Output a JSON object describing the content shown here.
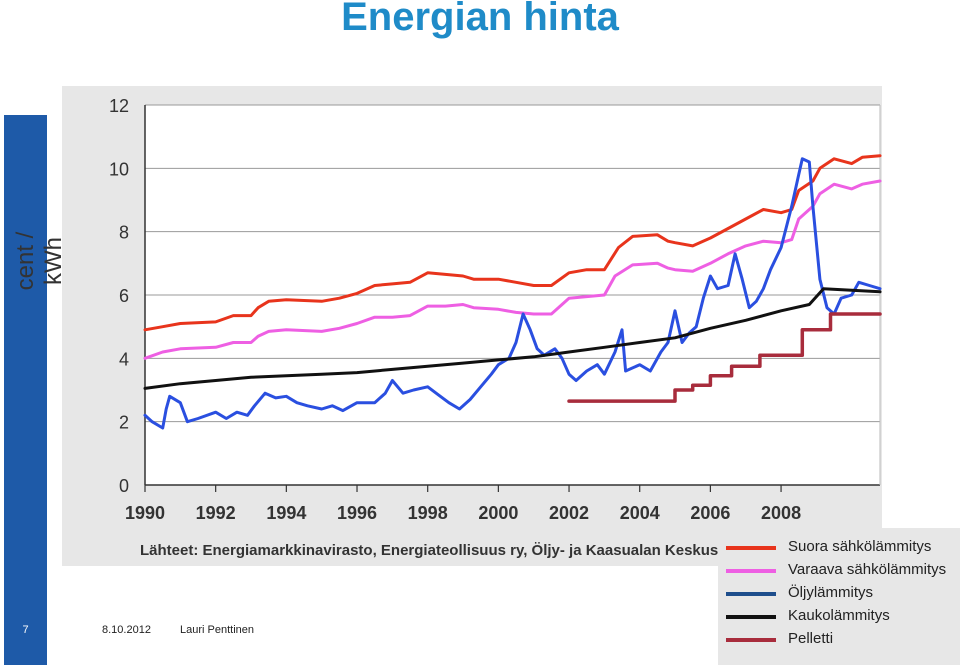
{
  "slide": {
    "title": "Energian hinta",
    "slide_number": "7",
    "date": "8.10.2012",
    "author": "Lauri Penttinen"
  },
  "chart_data": {
    "type": "line",
    "ylabel": "cent / kWh",
    "ylim": [
      0,
      12
    ],
    "yticks": [
      0,
      2,
      4,
      6,
      8,
      10,
      12
    ],
    "xlim": [
      1990,
      2010.8
    ],
    "xticks": [
      1990,
      1992,
      1994,
      1996,
      1998,
      2000,
      2002,
      2004,
      2006,
      2008
    ],
    "source": "Lähteet: Energiamarkkinavirasto, Energiateollisuus ry, Öljy- ja Kaasualan Keskusliitto",
    "legend_position": "bottom-right",
    "series": [
      {
        "name": "Suora sähkölämmitys",
        "color": "#e8341c",
        "points": [
          [
            1990,
            4.9
          ],
          [
            1990.5,
            5.0
          ],
          [
            1991,
            5.1
          ],
          [
            1992,
            5.15
          ],
          [
            1992.5,
            5.35
          ],
          [
            1993,
            5.35
          ],
          [
            1993.2,
            5.6
          ],
          [
            1993.5,
            5.8
          ],
          [
            1994,
            5.85
          ],
          [
            1995,
            5.8
          ],
          [
            1995.5,
            5.9
          ],
          [
            1996,
            6.05
          ],
          [
            1996.5,
            6.3
          ],
          [
            1997,
            6.35
          ],
          [
            1997.5,
            6.4
          ],
          [
            1998,
            6.7
          ],
          [
            1998.5,
            6.65
          ],
          [
            1999,
            6.6
          ],
          [
            1999.3,
            6.5
          ],
          [
            2000,
            6.5
          ],
          [
            2000.5,
            6.4
          ],
          [
            2001,
            6.3
          ],
          [
            2001.5,
            6.3
          ],
          [
            2002,
            6.7
          ],
          [
            2002.5,
            6.8
          ],
          [
            2003,
            6.8
          ],
          [
            2003.4,
            7.5
          ],
          [
            2003.8,
            7.85
          ],
          [
            2004.5,
            7.9
          ],
          [
            2004.8,
            7.7
          ],
          [
            2005,
            7.65
          ],
          [
            2005.5,
            7.55
          ],
          [
            2006,
            7.8
          ],
          [
            2006.5,
            8.1
          ],
          [
            2007,
            8.4
          ],
          [
            2007.5,
            8.7
          ],
          [
            2008,
            8.6
          ],
          [
            2008.3,
            8.7
          ],
          [
            2008.5,
            9.3
          ],
          [
            2008.9,
            9.6
          ],
          [
            2009.1,
            10.0
          ],
          [
            2009.5,
            10.3
          ],
          [
            2010,
            10.15
          ],
          [
            2010.3,
            10.35
          ],
          [
            2010.8,
            10.4
          ]
        ]
      },
      {
        "name": "Varaava sähkölämmitys",
        "color": "#ee5fe3",
        "points": [
          [
            1990,
            4.0
          ],
          [
            1990.5,
            4.2
          ],
          [
            1991,
            4.3
          ],
          [
            1992,
            4.35
          ],
          [
            1992.5,
            4.5
          ],
          [
            1993,
            4.5
          ],
          [
            1993.2,
            4.7
          ],
          [
            1993.5,
            4.85
          ],
          [
            1994,
            4.9
          ],
          [
            1995,
            4.85
          ],
          [
            1995.5,
            4.95
          ],
          [
            1996,
            5.1
          ],
          [
            1996.5,
            5.3
          ],
          [
            1997,
            5.3
          ],
          [
            1997.5,
            5.35
          ],
          [
            1998,
            5.65
          ],
          [
            1998.5,
            5.65
          ],
          [
            1999,
            5.7
          ],
          [
            1999.3,
            5.6
          ],
          [
            2000,
            5.55
          ],
          [
            2000.5,
            5.45
          ],
          [
            2001,
            5.4
          ],
          [
            2001.5,
            5.4
          ],
          [
            2002,
            5.9
          ],
          [
            2002.5,
            5.95
          ],
          [
            2003,
            6.0
          ],
          [
            2003.3,
            6.6
          ],
          [
            2003.8,
            6.95
          ],
          [
            2004.5,
            7.0
          ],
          [
            2004.8,
            6.85
          ],
          [
            2005,
            6.8
          ],
          [
            2005.5,
            6.75
          ],
          [
            2006,
            7.0
          ],
          [
            2006.5,
            7.3
          ],
          [
            2007,
            7.55
          ],
          [
            2007.5,
            7.7
          ],
          [
            2008,
            7.65
          ],
          [
            2008.3,
            7.75
          ],
          [
            2008.5,
            8.4
          ],
          [
            2008.9,
            8.8
          ],
          [
            2009.1,
            9.2
          ],
          [
            2009.5,
            9.5
          ],
          [
            2010,
            9.35
          ],
          [
            2010.3,
            9.5
          ],
          [
            2010.8,
            9.6
          ]
        ]
      },
      {
        "name": "Öljylämmitys",
        "color": "#2a4fe0",
        "points": [
          [
            1990,
            2.2
          ],
          [
            1990.2,
            2.0
          ],
          [
            1990.5,
            1.8
          ],
          [
            1990.6,
            2.4
          ],
          [
            1990.7,
            2.8
          ],
          [
            1991,
            2.6
          ],
          [
            1991.2,
            2.0
          ],
          [
            1991.5,
            2.1
          ],
          [
            1992,
            2.3
          ],
          [
            1992.3,
            2.1
          ],
          [
            1992.6,
            2.3
          ],
          [
            1992.9,
            2.2
          ],
          [
            1993.1,
            2.5
          ],
          [
            1993.4,
            2.9
          ],
          [
            1993.7,
            2.75
          ],
          [
            1994,
            2.8
          ],
          [
            1994.3,
            2.6
          ],
          [
            1994.6,
            2.5
          ],
          [
            1995,
            2.4
          ],
          [
            1995.3,
            2.5
          ],
          [
            1995.6,
            2.35
          ],
          [
            1996,
            2.6
          ],
          [
            1996.5,
            2.6
          ],
          [
            1996.8,
            2.9
          ],
          [
            1997,
            3.3
          ],
          [
            1997.3,
            2.9
          ],
          [
            1997.6,
            3.0
          ],
          [
            1998,
            3.1
          ],
          [
            1998.3,
            2.85
          ],
          [
            1998.6,
            2.6
          ],
          [
            1998.9,
            2.4
          ],
          [
            1999.2,
            2.7
          ],
          [
            1999.5,
            3.1
          ],
          [
            1999.8,
            3.5
          ],
          [
            2000,
            3.8
          ],
          [
            2000.3,
            4.0
          ],
          [
            2000.5,
            4.5
          ],
          [
            2000.7,
            5.4
          ],
          [
            2000.9,
            4.9
          ],
          [
            2001.1,
            4.3
          ],
          [
            2001.3,
            4.1
          ],
          [
            2001.6,
            4.3
          ],
          [
            2001.8,
            4.0
          ],
          [
            2002,
            3.5
          ],
          [
            2002.2,
            3.3
          ],
          [
            2002.5,
            3.6
          ],
          [
            2002.8,
            3.8
          ],
          [
            2003,
            3.5
          ],
          [
            2003.3,
            4.2
          ],
          [
            2003.5,
            4.9
          ],
          [
            2003.6,
            3.6
          ],
          [
            2004,
            3.8
          ],
          [
            2004.3,
            3.6
          ],
          [
            2004.6,
            4.2
          ],
          [
            2004.8,
            4.5
          ],
          [
            2005,
            5.5
          ],
          [
            2005.2,
            4.5
          ],
          [
            2005.4,
            4.8
          ],
          [
            2005.6,
            5.0
          ],
          [
            2005.8,
            5.9
          ],
          [
            2006,
            6.6
          ],
          [
            2006.2,
            6.2
          ],
          [
            2006.5,
            6.3
          ],
          [
            2006.7,
            7.3
          ],
          [
            2006.9,
            6.5
          ],
          [
            2007.1,
            5.6
          ],
          [
            2007.3,
            5.8
          ],
          [
            2007.5,
            6.2
          ],
          [
            2007.7,
            6.8
          ],
          [
            2008,
            7.5
          ],
          [
            2008.3,
            8.8
          ],
          [
            2008.5,
            9.8
          ],
          [
            2008.6,
            10.3
          ],
          [
            2008.8,
            10.2
          ],
          [
            2008.9,
            8.8
          ],
          [
            2009.1,
            6.5
          ],
          [
            2009.3,
            5.6
          ],
          [
            2009.5,
            5.4
          ],
          [
            2009.7,
            5.9
          ],
          [
            2010,
            6.0
          ],
          [
            2010.2,
            6.4
          ],
          [
            2010.5,
            6.3
          ],
          [
            2010.8,
            6.2
          ]
        ]
      },
      {
        "name": "Kaukolämmitys",
        "color": "#111111",
        "points": [
          [
            1990,
            3.05
          ],
          [
            1991,
            3.2
          ],
          [
            1992,
            3.3
          ],
          [
            1993,
            3.4
          ],
          [
            1994,
            3.45
          ],
          [
            1995,
            3.5
          ],
          [
            1996,
            3.55
          ],
          [
            1997,
            3.65
          ],
          [
            1998,
            3.75
          ],
          [
            1999,
            3.85
          ],
          [
            2000,
            3.95
          ],
          [
            2001,
            4.05
          ],
          [
            2002,
            4.2
          ],
          [
            2003,
            4.35
          ],
          [
            2004,
            4.5
          ],
          [
            2005,
            4.65
          ],
          [
            2006,
            4.95
          ],
          [
            2007,
            5.2
          ],
          [
            2008,
            5.5
          ],
          [
            2008.8,
            5.7
          ],
          [
            2009.2,
            6.2
          ],
          [
            2010,
            6.15
          ],
          [
            2010.8,
            6.1
          ]
        ]
      },
      {
        "name": "Pelletti",
        "color": "#a82c3c",
        "points": [
          [
            2002,
            2.65
          ],
          [
            2005,
            2.65
          ],
          [
            2005,
            3.0
          ],
          [
            2005.5,
            3.0
          ],
          [
            2005.5,
            3.15
          ],
          [
            2006,
            3.15
          ],
          [
            2006,
            3.45
          ],
          [
            2006.6,
            3.45
          ],
          [
            2006.6,
            3.75
          ],
          [
            2007.4,
            3.75
          ],
          [
            2007.4,
            4.1
          ],
          [
            2008.6,
            4.1
          ],
          [
            2008.6,
            4.9
          ],
          [
            2009.4,
            4.9
          ],
          [
            2009.4,
            5.4
          ],
          [
            2010.8,
            5.4
          ]
        ]
      }
    ]
  }
}
